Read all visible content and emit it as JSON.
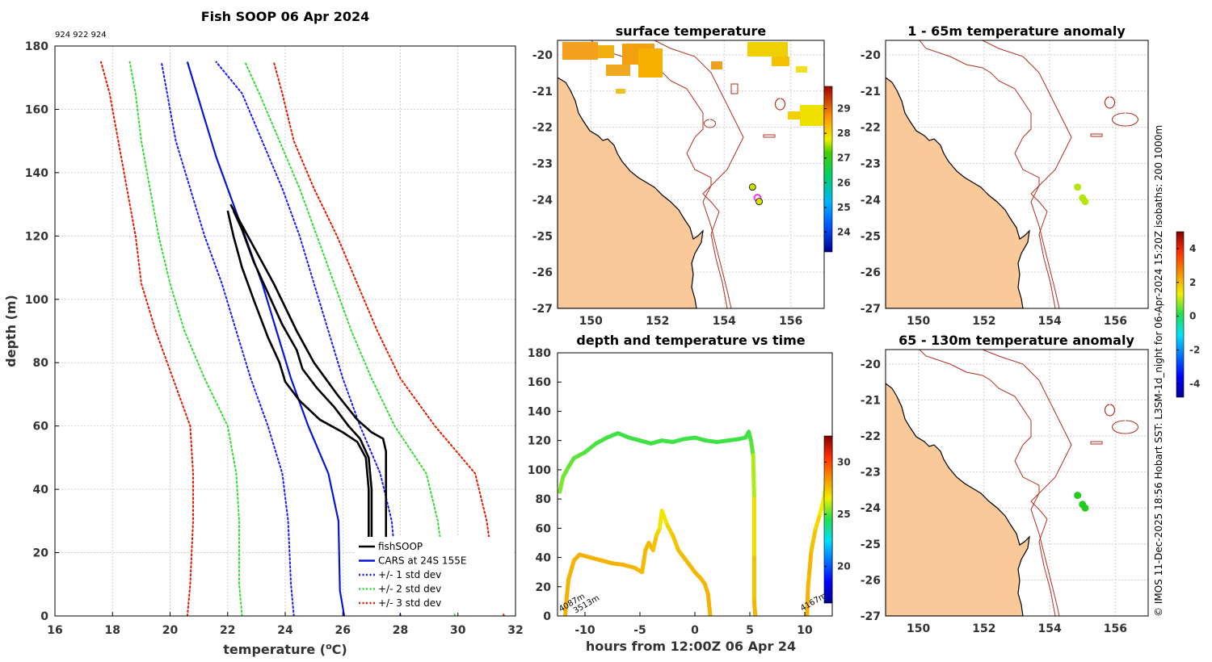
{
  "chart_data": [
    {
      "id": "profile",
      "type": "line",
      "title": "Fish SOOP 06 Apr 2024",
      "subtitle": "924 922 924",
      "xlabel": "temperature (",
      "xlabel_sup": "o",
      "xlabel_tail": "C)",
      "ylabel": "depth (m)",
      "xlim": [
        16,
        32
      ],
      "ylim": [
        180,
        0
      ],
      "xticks": [
        "16",
        "18",
        "20",
        "22",
        "24",
        "26",
        "28",
        "30",
        "32"
      ],
      "yticks": [
        "0",
        "20",
        "40",
        "60",
        "80",
        "100",
        "120",
        "140",
        "160",
        "180"
      ],
      "legend": [
        {
          "label": "fishSOOP",
          "color": "#000000",
          "style": "solid"
        },
        {
          "label": "CARS at 24S 155E",
          "color": "#0a14d8",
          "style": "solid"
        },
        {
          "label": "+/- 1 std dev",
          "color": "#1a1aff",
          "style": "dotted"
        },
        {
          "label": "+/- 2 std dev",
          "color": "#33dd33",
          "style": "dotted"
        },
        {
          "label": "+/- 3 std dev",
          "color": "#e61a00",
          "style": "dotted"
        }
      ],
      "series": [
        {
          "name": "CARS at 24S 155E",
          "color": "#0a14d8",
          "dash": false,
          "width": 2.2,
          "depth": [
            0,
            8,
            30,
            45,
            60,
            75,
            90,
            105,
            120,
            130,
            145,
            160,
            175
          ],
          "temp": [
            26.05,
            25.9,
            25.85,
            25.5,
            24.8,
            24.2,
            23.7,
            23.2,
            22.6,
            22.2,
            21.6,
            21.1,
            20.6
          ]
        },
        {
          "name": "+1 std dev",
          "color": "#1a1aff",
          "dash": true,
          "width": 2,
          "depth": [
            0,
            10,
            30,
            45,
            60,
            75,
            90,
            105,
            120,
            135,
            150,
            165,
            175
          ],
          "temp": [
            28.0,
            27.9,
            27.7,
            27.3,
            26.6,
            26.0,
            25.5,
            25.0,
            24.5,
            23.9,
            23.2,
            22.5,
            21.6
          ]
        },
        {
          "name": "-1 std dev",
          "color": "#1a1aff",
          "dash": true,
          "width": 2,
          "depth": [
            0,
            10,
            30,
            45,
            60,
            75,
            90,
            105,
            120,
            135,
            150,
            165,
            175
          ],
          "temp": [
            24.3,
            24.2,
            24.1,
            23.9,
            23.4,
            22.8,
            22.3,
            21.8,
            21.2,
            20.7,
            20.2,
            19.9,
            19.7
          ]
        },
        {
          "name": "+2 std dev",
          "color": "#33dd33",
          "dash": true,
          "width": 2,
          "depth": [
            0,
            10,
            30,
            45,
            60,
            75,
            90,
            105,
            120,
            135,
            150,
            165,
            175
          ],
          "temp": [
            29.9,
            29.6,
            29.3,
            28.9,
            27.8,
            27.0,
            26.3,
            25.7,
            25.1,
            24.5,
            23.8,
            23.1,
            22.6
          ]
        },
        {
          "name": "-2 std dev",
          "color": "#33dd33",
          "dash": true,
          "width": 2,
          "depth": [
            0,
            10,
            30,
            45,
            60,
            75,
            90,
            105,
            120,
            135,
            150,
            165,
            175
          ],
          "temp": [
            22.5,
            22.4,
            22.4,
            22.3,
            22.0,
            21.2,
            20.5,
            20.0,
            19.6,
            19.3,
            19.0,
            18.8,
            18.6
          ]
        },
        {
          "name": "+3 std dev",
          "color": "#e61a00",
          "dash": true,
          "width": 2,
          "depth": [
            0,
            10,
            30,
            45,
            60,
            75,
            90,
            105,
            120,
            135,
            150,
            165,
            175
          ],
          "temp": [
            31.6,
            31.3,
            31.0,
            30.6,
            29.2,
            28.0,
            27.2,
            26.5,
            25.8,
            25.0,
            24.3,
            23.9,
            23.6
          ]
        },
        {
          "name": "-3 std dev",
          "color": "#e61a00",
          "dash": true,
          "width": 2,
          "depth": [
            0,
            10,
            30,
            45,
            60,
            75,
            90,
            105,
            120,
            135,
            150,
            165,
            175
          ],
          "temp": [
            20.6,
            20.7,
            20.8,
            20.8,
            20.7,
            20.1,
            19.5,
            19.0,
            18.8,
            18.5,
            18.2,
            17.9,
            17.6
          ]
        },
        {
          "name": "fishSOOP 1",
          "color": "#000000",
          "dash": false,
          "width": 2.6,
          "depth": [
            2,
            20,
            40,
            52,
            56,
            58,
            62,
            70,
            80,
            90,
            105,
            115,
            125,
            130
          ],
          "temp": [
            27.5,
            27.5,
            27.5,
            27.5,
            27.4,
            27.0,
            26.5,
            25.8,
            25.0,
            24.4,
            23.6,
            23.0,
            22.4,
            22.1
          ]
        },
        {
          "name": "fishSOOP 2",
          "color": "#000000",
          "dash": false,
          "width": 2.6,
          "depth": [
            2,
            20,
            40,
            50,
            55,
            58,
            62,
            68,
            74,
            80,
            88,
            100,
            110,
            120,
            128
          ],
          "temp": [
            27.0,
            26.9,
            26.9,
            26.8,
            26.5,
            26.0,
            25.2,
            24.5,
            24.0,
            23.8,
            23.4,
            22.9,
            22.5,
            22.2,
            22.0
          ]
        },
        {
          "name": "fishSOOP 3",
          "color": "#000000",
          "dash": false,
          "width": 2.6,
          "depth": [
            2,
            20,
            40,
            50,
            56,
            60,
            66,
            72,
            78,
            84,
            92,
            102,
            112,
            122,
            128
          ],
          "temp": [
            27.1,
            27.0,
            27.0,
            26.9,
            26.6,
            26.2,
            25.7,
            25.1,
            24.6,
            24.4,
            23.9,
            23.4,
            22.9,
            22.5,
            22.2
          ]
        }
      ]
    },
    {
      "id": "surface",
      "type": "heatmap",
      "title": "surface temperature",
      "xlim": [
        149,
        157
      ],
      "ylim": [
        -27,
        -19.6
      ],
      "xticks": [
        "150",
        "152",
        "154",
        "156"
      ],
      "yticks": [
        "-20",
        "-21",
        "-22",
        "-23",
        "-24",
        "-25",
        "-26",
        "-27"
      ],
      "colorbar_ticks": [
        "24",
        "25",
        "26",
        "27",
        "28",
        "29"
      ],
      "colorbar_range": [
        23.2,
        29.9
      ],
      "stations": [
        {
          "lon": 154.85,
          "lat": -23.65,
          "value": 27.6,
          "color": "#c8e000"
        },
        {
          "lon": 155.0,
          "lat": -23.95,
          "value": 0,
          "color": "#ff33ff"
        },
        {
          "lon": 155.05,
          "lat": -24.05,
          "value": 27.5,
          "color": "#d4e400"
        }
      ]
    },
    {
      "id": "depth_time",
      "type": "scatter",
      "title": "depth and temperature vs time",
      "xlabel": "hours from 12:00Z 06 Apr 24",
      "xlim": [
        -12.5,
        12.5
      ],
      "ylim": [
        180,
        0
      ],
      "xticks": [
        "-10",
        "-5",
        "0",
        "5",
        "10"
      ],
      "yticks": [
        "0",
        "20",
        "40",
        "60",
        "80",
        "100",
        "120",
        "140",
        "160",
        "180"
      ],
      "colorbar_ticks": [
        "20",
        "25",
        "30"
      ],
      "colorbar_range": [
        16.5,
        32.5
      ],
      "depth_labels": [
        "4087m",
        "3513m",
        "4167m"
      ],
      "tracks": [
        {
          "t": [
            -11.8,
            -11.7,
            -11.5,
            -11.0,
            -10.5,
            -9.5,
            -8.5,
            -7.5,
            -6.5,
            -5.5,
            -4.8,
            -4.5,
            -4.2,
            -3.8,
            -3.5,
            -3.2,
            -3.0,
            -2.5,
            -2.0,
            -1.5,
            -1.0,
            -0.5,
            0.0,
            0.5,
            0.9,
            1.2,
            1.4
          ],
          "d": [
            0,
            10,
            25,
            38,
            42,
            40,
            38,
            36,
            35,
            33,
            30,
            45,
            50,
            45,
            55,
            60,
            72,
            62,
            55,
            45,
            40,
            35,
            30,
            26,
            22,
            15,
            0
          ],
          "c": [
            27.8,
            27.8,
            27.8,
            27.8,
            27.8,
            27.8,
            27.8,
            27.8,
            27.8,
            27.7,
            27.6,
            27.6,
            27.7,
            27.6,
            27.3,
            27.0,
            26.4,
            27.0,
            27.3,
            27.5,
            27.6,
            27.6,
            27.7,
            27.7,
            27.7,
            27.8,
            27.8
          ]
        },
        {
          "t": [
            -12.3,
            -12.0,
            -11.5,
            -11.0,
            -10.0,
            -9.0,
            -8.0,
            -7.0,
            -6.0,
            -5.0,
            -4.0,
            -3.0,
            -2.0,
            -1.0,
            0.0,
            1.0,
            2.0,
            3.0,
            4.0,
            4.6,
            4.9,
            5.1,
            5.3,
            5.4,
            5.4,
            5.4,
            5.5
          ],
          "d": [
            85,
            95,
            102,
            108,
            112,
            118,
            122,
            125,
            122,
            120,
            118,
            120,
            119,
            121,
            122,
            120,
            119,
            120,
            121,
            122,
            126,
            120,
            110,
            80,
            40,
            10,
            0
          ],
          "c": [
            25.5,
            25.3,
            25.2,
            25.1,
            25.0,
            24.9,
            24.8,
            24.8,
            24.8,
            24.8,
            24.8,
            24.8,
            24.8,
            24.8,
            24.8,
            24.8,
            24.8,
            24.8,
            24.8,
            24.8,
            24.8,
            24.9,
            25.2,
            26.5,
            27.3,
            27.6,
            27.8
          ]
        },
        {
          "t": [
            10.2,
            10.3,
            10.6,
            11.0,
            11.4,
            11.8,
            12.0
          ],
          "d": [
            0,
            20,
            45,
            60,
            70,
            82,
            95
          ],
          "c": [
            27.8,
            27.8,
            27.6,
            27.2,
            26.8,
            26.3,
            25.9
          ]
        }
      ]
    },
    {
      "id": "anomaly_shallow",
      "type": "scatter",
      "title": "1 - 65m temperature anomaly",
      "xlim": [
        149,
        157
      ],
      "ylim": [
        -27,
        -19.6
      ],
      "xticks": [
        "150",
        "152",
        "154",
        "156"
      ],
      "yticks": [
        "-20",
        "-21",
        "-22",
        "-23",
        "-24",
        "-25",
        "-26",
        "-27"
      ],
      "stations": [
        {
          "lon": 154.85,
          "lat": -23.65,
          "value": 1.2,
          "color": "#b4e60a"
        },
        {
          "lon": 155.0,
          "lat": -23.95,
          "value": 1.2,
          "color": "#b4e60a"
        },
        {
          "lon": 155.08,
          "lat": -24.05,
          "value": 1.2,
          "color": "#b4e60a"
        }
      ]
    },
    {
      "id": "anomaly_deep",
      "type": "scatter",
      "title": "65 - 130m temperature anomaly",
      "xlim": [
        149,
        157
      ],
      "ylim": [
        -27,
        -19.6
      ],
      "xticks": [
        "150",
        "152",
        "154",
        "156"
      ],
      "yticks": [
        "-20",
        "-21",
        "-22",
        "-23",
        "-24",
        "-25",
        "-26",
        "-27"
      ],
      "stations": [
        {
          "lon": 154.85,
          "lat": -23.65,
          "value": 0.3,
          "color": "#22cc1a"
        },
        {
          "lon": 155.0,
          "lat": -23.9,
          "value": 0.3,
          "color": "#22cc1a"
        },
        {
          "lon": 155.08,
          "lat": -24.0,
          "value": 0.3,
          "color": "#22cc1a"
        }
      ]
    },
    {
      "id": "anomaly_colorbar",
      "type": "heatmap",
      "colorbar_ticks": [
        "-4",
        "-2",
        "0",
        "2",
        "4"
      ],
      "colorbar_range": [
        -4.8,
        5.0
      ]
    }
  ],
  "credit": "© IMOS 11-Dec-2025 18:56 Hobart SST: L3SM-1d_night for 06-Apr-2024 15:20Z isobaths: 200  1000m"
}
